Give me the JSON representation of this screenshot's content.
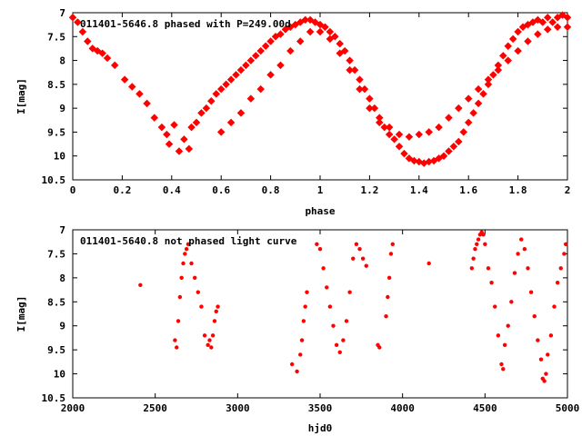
{
  "chart_data": [
    {
      "type": "scatter",
      "title": "011401-5646.8 phased with P=249.00d",
      "xlabel": "phase",
      "ylabel": "I[mag]",
      "xlim": [
        0,
        2
      ],
      "ylim": [
        10.5,
        7
      ],
      "y_inverted": true,
      "xticks": [
        0,
        0.2,
        0.4,
        0.6,
        0.8,
        1,
        1.2,
        1.4,
        1.6,
        1.8,
        2
      ],
      "xtick_labels": [
        "0",
        "0.2",
        "0.4",
        "0.6",
        "0.8",
        "1",
        "1.2",
        "1.4",
        "1.6",
        "1.8",
        "2"
      ],
      "yticks": [
        7,
        7.5,
        8,
        8.5,
        9,
        9.5,
        10,
        10.5
      ],
      "ytick_labels": [
        "7",
        "7.5",
        "8",
        "8.5",
        "9",
        "9.5",
        "10",
        "10.5"
      ],
      "grid": false,
      "marker_color": "#ff0000",
      "series": [
        {
          "points": [
            [
              0.0,
              7.1
            ],
            [
              0.02,
              7.2
            ],
            [
              0.04,
              7.4
            ],
            [
              0.06,
              7.6
            ],
            [
              0.08,
              7.75
            ],
            [
              0.1,
              7.8
            ],
            [
              0.12,
              7.85
            ],
            [
              0.14,
              7.95
            ],
            [
              0.17,
              8.1
            ],
            [
              0.21,
              8.4
            ],
            [
              0.24,
              8.55
            ],
            [
              0.27,
              8.7
            ],
            [
              0.3,
              8.9
            ],
            [
              0.33,
              9.2
            ],
            [
              0.36,
              9.4
            ],
            [
              0.38,
              9.55
            ],
            [
              0.39,
              9.75
            ],
            [
              0.41,
              9.35
            ],
            [
              0.43,
              9.9
            ],
            [
              0.45,
              9.65
            ],
            [
              0.47,
              9.85
            ],
            [
              0.48,
              9.4
            ],
            [
              0.5,
              9.3
            ],
            [
              0.52,
              9.1
            ],
            [
              0.54,
              9.0
            ],
            [
              0.56,
              8.85
            ],
            [
              0.58,
              8.7
            ],
            [
              0.6,
              8.6
            ],
            [
              0.62,
              8.5
            ],
            [
              0.64,
              8.4
            ],
            [
              0.66,
              8.3
            ],
            [
              0.68,
              8.2
            ],
            [
              0.7,
              8.1
            ],
            [
              0.72,
              8.0
            ],
            [
              0.74,
              7.9
            ],
            [
              0.76,
              7.8
            ],
            [
              0.78,
              7.7
            ],
            [
              0.8,
              7.6
            ],
            [
              0.82,
              7.5
            ],
            [
              0.84,
              7.45
            ],
            [
              0.86,
              7.35
            ],
            [
              0.88,
              7.3
            ],
            [
              0.9,
              7.25
            ],
            [
              0.92,
              7.2
            ],
            [
              0.94,
              7.15
            ],
            [
              0.96,
              7.15
            ],
            [
              0.98,
              7.2
            ],
            [
              1.0,
              7.25
            ],
            [
              1.02,
              7.3
            ],
            [
              1.04,
              7.4
            ],
            [
              1.06,
              7.5
            ],
            [
              1.08,
              7.65
            ],
            [
              1.1,
              7.8
            ],
            [
              1.12,
              8.0
            ],
            [
              1.14,
              8.2
            ],
            [
              1.16,
              8.4
            ],
            [
              1.18,
              8.6
            ],
            [
              1.2,
              8.8
            ],
            [
              1.22,
              9.0
            ],
            [
              1.24,
              9.2
            ],
            [
              1.26,
              9.4
            ],
            [
              1.28,
              9.55
            ],
            [
              1.3,
              9.65
            ],
            [
              1.32,
              9.8
            ],
            [
              1.34,
              9.95
            ],
            [
              1.36,
              10.05
            ],
            [
              1.38,
              10.1
            ],
            [
              1.4,
              10.12
            ],
            [
              1.42,
              10.15
            ],
            [
              1.44,
              10.12
            ],
            [
              1.46,
              10.1
            ],
            [
              1.48,
              10.05
            ],
            [
              1.5,
              10.0
            ],
            [
              1.52,
              9.9
            ],
            [
              1.54,
              9.8
            ],
            [
              1.56,
              9.7
            ],
            [
              1.58,
              9.5
            ],
            [
              1.6,
              9.3
            ],
            [
              1.62,
              9.1
            ],
            [
              1.64,
              8.9
            ],
            [
              1.66,
              8.7
            ],
            [
              1.68,
              8.5
            ],
            [
              1.7,
              8.3
            ],
            [
              1.72,
              8.1
            ],
            [
              1.74,
              7.9
            ],
            [
              1.76,
              7.7
            ],
            [
              1.78,
              7.55
            ],
            [
              1.8,
              7.4
            ],
            [
              1.82,
              7.3
            ],
            [
              1.84,
              7.25
            ],
            [
              1.86,
              7.2
            ],
            [
              1.88,
              7.15
            ],
            [
              1.9,
              7.2
            ],
            [
              1.92,
              7.1
            ],
            [
              1.94,
              7.2
            ],
            [
              1.96,
              7.1
            ],
            [
              1.98,
              7.05
            ],
            [
              2.0,
              7.1
            ],
            [
              0.6,
              9.5
            ],
            [
              0.64,
              9.3
            ],
            [
              0.68,
              9.1
            ],
            [
              0.72,
              8.8
            ],
            [
              0.76,
              8.6
            ],
            [
              0.8,
              8.3
            ],
            [
              0.84,
              8.1
            ],
            [
              0.88,
              7.8
            ],
            [
              0.92,
              7.6
            ],
            [
              0.96,
              7.4
            ],
            [
              1.0,
              7.4
            ],
            [
              1.04,
              7.55
            ],
            [
              1.08,
              7.85
            ],
            [
              1.12,
              8.2
            ],
            [
              1.16,
              8.6
            ],
            [
              1.2,
              9.0
            ],
            [
              1.24,
              9.3
            ],
            [
              1.28,
              9.4
            ],
            [
              1.32,
              9.55
            ],
            [
              1.36,
              9.6
            ],
            [
              1.4,
              9.55
            ],
            [
              1.44,
              9.5
            ],
            [
              1.48,
              9.4
            ],
            [
              1.52,
              9.2
            ],
            [
              1.56,
              9.0
            ],
            [
              1.6,
              8.8
            ],
            [
              1.64,
              8.6
            ],
            [
              1.68,
              8.4
            ],
            [
              1.72,
              8.2
            ],
            [
              1.76,
              8.0
            ],
            [
              1.8,
              7.8
            ],
            [
              1.84,
              7.6
            ],
            [
              1.88,
              7.45
            ],
            [
              1.92,
              7.35
            ],
            [
              1.96,
              7.3
            ],
            [
              2.0,
              7.3
            ]
          ]
        }
      ]
    },
    {
      "type": "scatter",
      "title": "011401-5640.8 not phased light curve",
      "xlabel": "hjd0",
      "ylabel": "I[mag]",
      "xlim": [
        2000,
        5000
      ],
      "ylim": [
        10.5,
        7
      ],
      "y_inverted": true,
      "xticks": [
        2000,
        2500,
        3000,
        3500,
        4000,
        4500,
        5000
      ],
      "xtick_labels": [
        "2000",
        "2500",
        "3000",
        "3500",
        "4000",
        "4500",
        "5000"
      ],
      "yticks": [
        7,
        7.5,
        8,
        8.5,
        9,
        9.5,
        10,
        10.5
      ],
      "ytick_labels": [
        "7",
        "7.5",
        "8",
        "8.5",
        "9",
        "9.5",
        "10",
        "10.5"
      ],
      "grid": false,
      "marker_color": "#ff0000",
      "series": [
        {
          "points": [
            [
              2410,
              8.15
            ],
            [
              2620,
              9.3
            ],
            [
              2630,
              9.45
            ],
            [
              2640,
              8.9
            ],
            [
              2650,
              8.4
            ],
            [
              2660,
              8.0
            ],
            [
              2670,
              7.7
            ],
            [
              2680,
              7.5
            ],
            [
              2690,
              7.4
            ],
            [
              2700,
              7.3
            ],
            [
              2720,
              7.7
            ],
            [
              2740,
              8.0
            ],
            [
              2760,
              8.3
            ],
            [
              2780,
              8.6
            ],
            [
              2800,
              9.2
            ],
            [
              2820,
              9.4
            ],
            [
              2830,
              9.3
            ],
            [
              2840,
              9.45
            ],
            [
              2850,
              9.2
            ],
            [
              2860,
              8.9
            ],
            [
              2870,
              8.7
            ],
            [
              2880,
              8.6
            ],
            [
              3330,
              9.8
            ],
            [
              3360,
              9.95
            ],
            [
              3380,
              9.6
            ],
            [
              3390,
              9.3
            ],
            [
              3400,
              8.9
            ],
            [
              3410,
              8.6
            ],
            [
              3420,
              8.3
            ],
            [
              3480,
              7.3
            ],
            [
              3500,
              7.4
            ],
            [
              3520,
              7.8
            ],
            [
              3540,
              8.2
            ],
            [
              3560,
              8.6
            ],
            [
              3580,
              9.0
            ],
            [
              3600,
              9.4
            ],
            [
              3620,
              9.55
            ],
            [
              3640,
              9.3
            ],
            [
              3660,
              8.9
            ],
            [
              3680,
              8.3
            ],
            [
              3700,
              7.6
            ],
            [
              3720,
              7.3
            ],
            [
              3740,
              7.4
            ],
            [
              3760,
              7.6
            ],
            [
              3780,
              7.75
            ],
            [
              3850,
              9.4
            ],
            [
              3860,
              9.45
            ],
            [
              3900,
              8.8
            ],
            [
              3910,
              8.4
            ],
            [
              3920,
              8.0
            ],
            [
              3930,
              7.5
            ],
            [
              3940,
              7.3
            ],
            [
              4160,
              7.7
            ],
            [
              4420,
              7.8
            ],
            [
              4430,
              7.6
            ],
            [
              4440,
              7.4
            ],
            [
              4450,
              7.3
            ],
            [
              4460,
              7.2
            ],
            [
              4470,
              7.1
            ],
            [
              4480,
              7.05
            ],
            [
              4490,
              7.1
            ],
            [
              4500,
              7.3
            ],
            [
              4520,
              7.8
            ],
            [
              4540,
              8.1
            ],
            [
              4560,
              8.6
            ],
            [
              4580,
              9.2
            ],
            [
              4600,
              9.8
            ],
            [
              4610,
              9.9
            ],
            [
              4620,
              9.4
            ],
            [
              4640,
              9.0
            ],
            [
              4660,
              8.5
            ],
            [
              4680,
              7.9
            ],
            [
              4700,
              7.5
            ],
            [
              4720,
              7.2
            ],
            [
              4740,
              7.4
            ],
            [
              4760,
              7.8
            ],
            [
              4780,
              8.3
            ],
            [
              4800,
              8.8
            ],
            [
              4820,
              9.3
            ],
            [
              4840,
              9.7
            ],
            [
              4850,
              10.1
            ],
            [
              4860,
              10.15
            ],
            [
              4870,
              10.0
            ],
            [
              4880,
              9.6
            ],
            [
              4900,
              9.2
            ],
            [
              4920,
              8.6
            ],
            [
              4940,
              8.1
            ],
            [
              4960,
              7.8
            ],
            [
              4980,
              7.5
            ],
            [
              4990,
              7.3
            ]
          ]
        }
      ]
    }
  ]
}
